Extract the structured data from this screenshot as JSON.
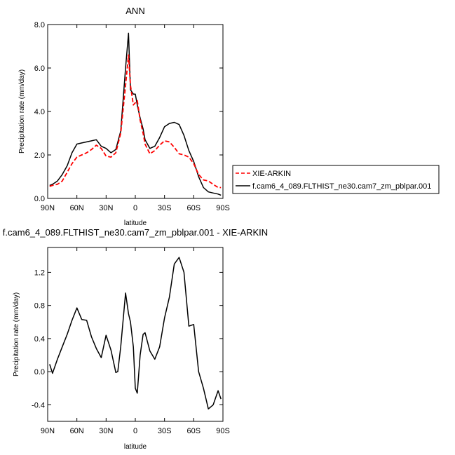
{
  "chart_data": [
    {
      "type": "line",
      "title": "ANN",
      "xlabel": "latitude",
      "ylabel": "Precipitation rate (mm/day)",
      "xlim": [
        90,
        -90
      ],
      "ylim": [
        0,
        8
      ],
      "x_ticks": [
        "90N",
        "60N",
        "30N",
        "0",
        "30S",
        "60S",
        "90S"
      ],
      "y_ticks": [
        "0.0",
        "2.0",
        "4.0",
        "6.0",
        "8.0"
      ],
      "legend_position": "right",
      "x": [
        88,
        85,
        80,
        75,
        70,
        65,
        60,
        55,
        50,
        45,
        40,
        35,
        30,
        25,
        20,
        15,
        10,
        7,
        5,
        2,
        0,
        -2,
        -5,
        -8,
        -10,
        -15,
        -20,
        -25,
        -30,
        -35,
        -40,
        -45,
        -50,
        -55,
        -60,
        -65,
        -70,
        -75,
        -80,
        -85,
        -88
      ],
      "series": [
        {
          "name": "XIE-ARKIN",
          "color": "#ff0000",
          "dash": true,
          "values": [
            0.55,
            0.6,
            0.65,
            0.8,
            1.2,
            1.6,
            1.9,
            2.0,
            2.1,
            2.25,
            2.45,
            2.3,
            1.95,
            1.9,
            2.1,
            3.0,
            5.2,
            6.6,
            5.2,
            4.3,
            4.4,
            4.5,
            3.6,
            3.0,
            2.5,
            2.05,
            2.2,
            2.45,
            2.65,
            2.6,
            2.35,
            2.05,
            2.0,
            1.9,
            1.6,
            1.1,
            0.85,
            0.8,
            0.65,
            0.5,
            0.5
          ]
        },
        {
          "name": "f.cam6_4_089.FLTHIST_ne30.cam7_zm_pblpar.001",
          "color": "#000000",
          "dash": false,
          "values": [
            0.6,
            0.65,
            0.8,
            1.1,
            1.5,
            2.1,
            2.5,
            2.55,
            2.6,
            2.65,
            2.7,
            2.4,
            2.3,
            2.1,
            2.25,
            3.1,
            6.0,
            7.6,
            5.0,
            4.8,
            4.8,
            4.3,
            3.7,
            3.2,
            2.7,
            2.3,
            2.4,
            2.8,
            3.3,
            3.45,
            3.5,
            3.4,
            2.9,
            2.2,
            1.7,
            1.0,
            0.5,
            0.3,
            0.25,
            0.2,
            0.15
          ]
        }
      ]
    },
    {
      "type": "line",
      "title": "f.cam6_4_089.FLTHIST_ne30.cam7_zm_pblpar.001 - XIE-ARKIN",
      "xlabel": "latitude",
      "ylabel": "Precipitation rate (mm/day)",
      "xlim": [
        90,
        -90
      ],
      "ylim": [
        -0.6,
        1.5
      ],
      "x_ticks": [
        "90N",
        "60N",
        "30N",
        "0",
        "30S",
        "60S",
        "90S"
      ],
      "y_ticks": [
        "-0.4",
        "0.0",
        "0.4",
        "0.8",
        "1.2"
      ],
      "x": [
        88,
        85,
        80,
        75,
        70,
        65,
        60,
        55,
        50,
        45,
        40,
        35,
        30,
        25,
        22,
        20,
        18,
        15,
        10,
        7,
        5,
        2,
        0,
        -2,
        -5,
        -8,
        -10,
        -15,
        -20,
        -25,
        -30,
        -35,
        -40,
        -45,
        -50,
        -55,
        -60,
        -65,
        -70,
        -75,
        -80,
        -85,
        -88
      ],
      "series": [
        {
          "name": "",
          "color": "#000000",
          "dash": false,
          "values": [
            0.09,
            -0.02,
            0.15,
            0.3,
            0.45,
            0.62,
            0.77,
            0.63,
            0.62,
            0.42,
            0.28,
            0.17,
            0.44,
            0.26,
            0.1,
            -0.01,
            0.0,
            0.3,
            0.95,
            0.7,
            0.6,
            0.3,
            -0.2,
            -0.26,
            0.2,
            0.45,
            0.47,
            0.25,
            0.15,
            0.3,
            0.65,
            0.9,
            1.3,
            1.38,
            1.2,
            0.55,
            0.57,
            0.0,
            -0.2,
            -0.45,
            -0.4,
            -0.23,
            -0.33
          ]
        }
      ]
    }
  ]
}
